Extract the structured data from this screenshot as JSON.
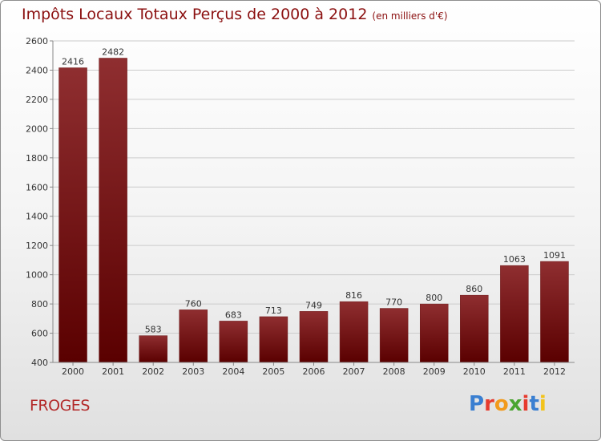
{
  "header": {
    "title": "Impôts Locaux Totaux Perçus de 2000 à 2012",
    "unit": "(en milliers d'€)"
  },
  "commune": "FROGES",
  "logo": {
    "text": "Proxiti",
    "letters": [
      "P",
      "r",
      "o",
      "x",
      "i",
      "t",
      "i"
    ],
    "colors": [
      "#3a7fd1",
      "#e63b2e",
      "#f29a1c",
      "#4aa531",
      "#e63b2e",
      "#3a7fd1",
      "#f2c31c"
    ]
  },
  "colors": {
    "title": "#8b1010",
    "bar_top": "#8f2e30",
    "bar_bottom": "#5a0000",
    "grid": "#cccccc"
  },
  "chart_data": {
    "type": "bar",
    "title": "Impôts Locaux Totaux Perçus de 2000 à 2012",
    "subtitle": "(en milliers d'€)",
    "categories": [
      "2000",
      "2001",
      "2002",
      "2003",
      "2004",
      "2005",
      "2006",
      "2007",
      "2008",
      "2009",
      "2010",
      "2011",
      "2012"
    ],
    "values": [
      2416,
      2482,
      583,
      760,
      683,
      713,
      749,
      816,
      770,
      800,
      860,
      1063,
      1091
    ],
    "ylim": [
      400,
      2600
    ],
    "yticks": [
      400,
      600,
      800,
      1000,
      1200,
      1400,
      1600,
      1800,
      2000,
      2200,
      2400,
      2600
    ],
    "grid": true,
    "legend": "none",
    "data_labels": true
  }
}
